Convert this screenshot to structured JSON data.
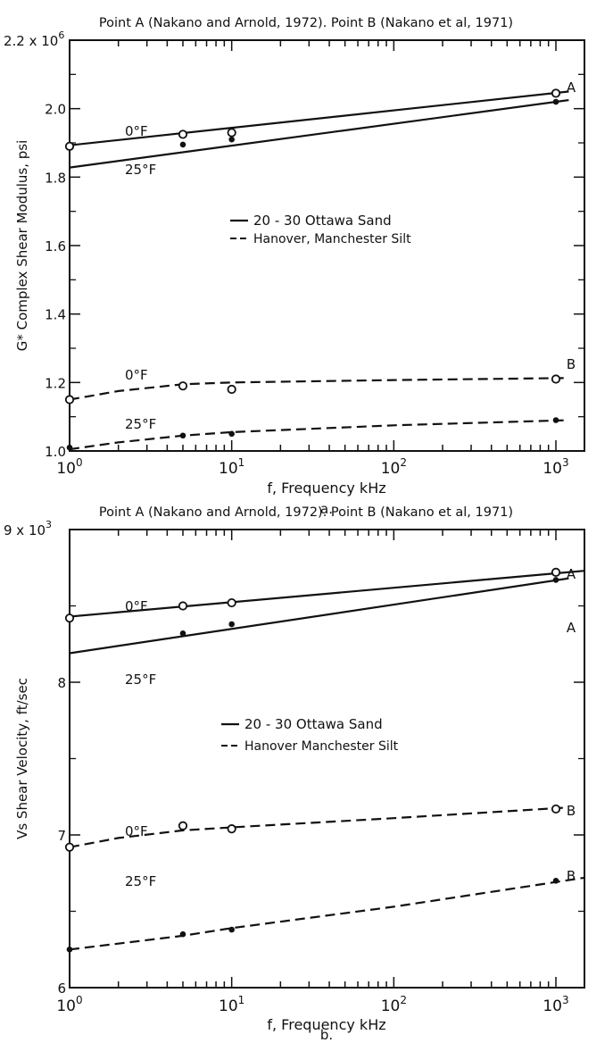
{
  "chart_data": [
    {
      "type": "line",
      "panel": "a.",
      "title": "Point A (Nakano and Arnold, 1972). Point B (Nakano et al, 1971)",
      "xlabel": "f, Frequency  kHz",
      "ylabel": "G* Complex Shear Modulus, psi",
      "x_scale": "log",
      "xlim": [
        1,
        1000
      ],
      "ylim": [
        1.0,
        2.2
      ],
      "y_multiplier": "2.2 x 10^6",
      "x_tick_labels": [
        {
          "base": "10",
          "exp": "0",
          "value": 1
        },
        {
          "base": "10",
          "exp": "1",
          "value": 10
        },
        {
          "base": "10",
          "exp": "2",
          "value": 100
        },
        {
          "base": "10",
          "exp": "3",
          "value": 1000
        }
      ],
      "y_tick_labels": [
        {
          "text": "1.0",
          "value": 1.0
        },
        {
          "text": "1.2",
          "value": 1.2
        },
        {
          "text": "1.4",
          "value": 1.4
        },
        {
          "text": "1.6",
          "value": 1.6
        },
        {
          "text": "1.8",
          "value": 1.8
        },
        {
          "text": "2.0",
          "value": 2.0
        },
        {
          "text": "2.2 x 10",
          "value": 2.2,
          "exp": "6"
        }
      ],
      "legend": [
        {
          "label": "20 - 30 Ottawa Sand",
          "style": "solid"
        },
        {
          "label": "Hanover, Manchester Silt",
          "style": "dashed"
        }
      ],
      "legend_position": "middle-right",
      "series": [
        {
          "label": "0°F",
          "style": "solid",
          "marker": "open",
          "point_label": "A",
          "line_start": 1.0,
          "line_end": 1200,
          "x": [
            1,
            5,
            10,
            1000
          ],
          "y": [
            1.89,
            1.925,
            1.93,
            2.045
          ],
          "fit": [
            1.893,
            2.05
          ]
        },
        {
          "label": "25°F",
          "style": "solid",
          "marker": "filled",
          "line_start": 1.0,
          "line_end": 1200,
          "x": [
            5,
            10,
            1000
          ],
          "y": [
            1.895,
            1.91,
            2.02
          ],
          "fit": [
            1.828,
            2.025
          ]
        },
        {
          "label": "0°F",
          "style": "dashed",
          "marker": "open",
          "point_label": "B",
          "line_start": 1.0,
          "line_end": 1200,
          "x": [
            1,
            5,
            10,
            1000
          ],
          "y": [
            1.15,
            1.19,
            1.18,
            1.21
          ],
          "curve": [
            [
              1,
              1.15
            ],
            [
              2,
              1.175
            ],
            [
              5,
              1.195
            ],
            [
              10,
              1.2
            ],
            [
              100,
              1.207
            ],
            [
              1200,
              1.213
            ]
          ]
        },
        {
          "label": "25°F",
          "style": "dashed",
          "marker": "filled",
          "line_start": 1.0,
          "line_end": 1200,
          "x": [
            1,
            5,
            10,
            1000
          ],
          "y": [
            1.01,
            1.045,
            1.05,
            1.09
          ],
          "curve": [
            [
              1,
              1.005
            ],
            [
              2,
              1.025
            ],
            [
              5,
              1.045
            ],
            [
              10,
              1.055
            ],
            [
              100,
              1.075
            ],
            [
              1200,
              1.09
            ]
          ]
        }
      ]
    },
    {
      "type": "line",
      "panel": "b.",
      "title": "Point A (Nakano and Arnold, 1972). Point B (Nakano et al, 1971)",
      "xlabel": "f, Frequency  kHz",
      "ylabel": "Vs Shear Velocity, ft/sec",
      "x_scale": "log",
      "xlim": [
        1,
        1000
      ],
      "ylim": [
        6,
        9
      ],
      "x_tick_labels": [
        {
          "base": "10",
          "exp": "0",
          "value": 1
        },
        {
          "base": "10",
          "exp": "1",
          "value": 10
        },
        {
          "base": "10",
          "exp": "2",
          "value": 100
        },
        {
          "base": "10",
          "exp": "3",
          "value": 1000
        }
      ],
      "y_tick_labels": [
        {
          "text": "6",
          "value": 6
        },
        {
          "text": "7",
          "value": 7
        },
        {
          "text": "8",
          "value": 8
        },
        {
          "text": "9 x 10",
          "value": 9,
          "exp": "3"
        }
      ],
      "legend": [
        {
          "label": "20 - 30 Ottawa Sand",
          "style": "solid"
        },
        {
          "label": "Hanover Manchester Silt",
          "style": "dashed"
        }
      ],
      "legend_position": "middle-right",
      "series": [
        {
          "label": "0°F",
          "style": "solid",
          "marker": "open",
          "point_label": "A",
          "line_start": 1.0,
          "line_end": 1500,
          "x": [
            1,
            5,
            10,
            1000
          ],
          "y": [
            8.42,
            8.5,
            8.52,
            8.72
          ],
          "fit": [
            8.43,
            8.73
          ]
        },
        {
          "label": "25°F",
          "style": "solid",
          "marker": "filled",
          "point_label": "A",
          "line_start": 1.0,
          "line_end": 1200,
          "x": [
            5,
            10,
            1000
          ],
          "y": [
            8.32,
            8.38,
            8.67
          ],
          "fit": [
            8.19,
            8.68
          ]
        },
        {
          "label": "0°F",
          "style": "dashed",
          "marker": "open",
          "point_label": "B",
          "line_start": 1.0,
          "line_end": 1200,
          "x": [
            1,
            5,
            10,
            1000
          ],
          "y": [
            6.92,
            7.06,
            7.04,
            7.17
          ],
          "curve": [
            [
              1,
              6.92
            ],
            [
              2,
              6.98
            ],
            [
              5,
              7.03
            ],
            [
              10,
              7.05
            ],
            [
              100,
              7.11
            ],
            [
              1200,
              7.18
            ]
          ]
        },
        {
          "label": "25°F",
          "style": "dashed",
          "marker": "filled",
          "point_label": "B",
          "line_start": 1.0,
          "line_end": 1500,
          "x": [
            1,
            5,
            10,
            1000
          ],
          "y": [
            6.25,
            6.35,
            6.38,
            6.7
          ],
          "curve": [
            [
              1,
              6.25
            ],
            [
              5,
              6.34
            ],
            [
              10,
              6.39
            ],
            [
              100,
              6.53
            ],
            [
              1500,
              6.72
            ]
          ]
        }
      ]
    }
  ]
}
